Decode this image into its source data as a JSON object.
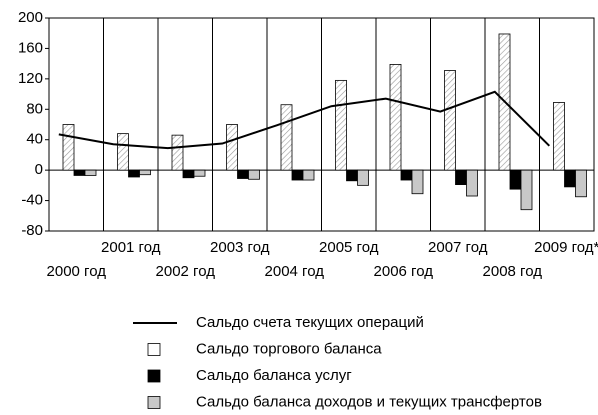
{
  "chart_data": {
    "type": "bar",
    "categories": [
      "2000 год",
      "2001 год",
      "2002 год",
      "2003 год",
      "2004 год",
      "2005 год",
      "2006 год",
      "2007 год",
      "2008 год",
      "2009 год*"
    ],
    "series": [
      {
        "name": "Сальдо счета текущих операций",
        "kind": "line",
        "color": "#000000",
        "values": [
          47,
          34,
          29,
          35,
          59,
          84,
          94,
          77,
          103,
          32
        ]
      },
      {
        "name": "Сальдо торгового баланса",
        "kind": "bar",
        "color": "#ffffff",
        "pattern": "hatch",
        "values": [
          60,
          48,
          46,
          60,
          86,
          118,
          139,
          131,
          179,
          89
        ]
      },
      {
        "name": "Сальдо баланса услуг",
        "kind": "bar",
        "color": "#000000",
        "values": [
          -7,
          -9,
          -10,
          -11,
          -13,
          -14,
          -13,
          -19,
          -25,
          -22
        ]
      },
      {
        "name": "Сальдо баланса доходов и текущих трансфертов",
        "kind": "bar",
        "color": "#c8c8c8",
        "values": [
          -7,
          -6,
          -8,
          -12,
          -13,
          -20,
          -31,
          -34,
          -52,
          -35
        ]
      }
    ],
    "ylim": [
      -80,
      200
    ],
    "yticks": [
      200,
      160,
      120,
      80,
      40,
      0,
      -40,
      -80
    ]
  }
}
